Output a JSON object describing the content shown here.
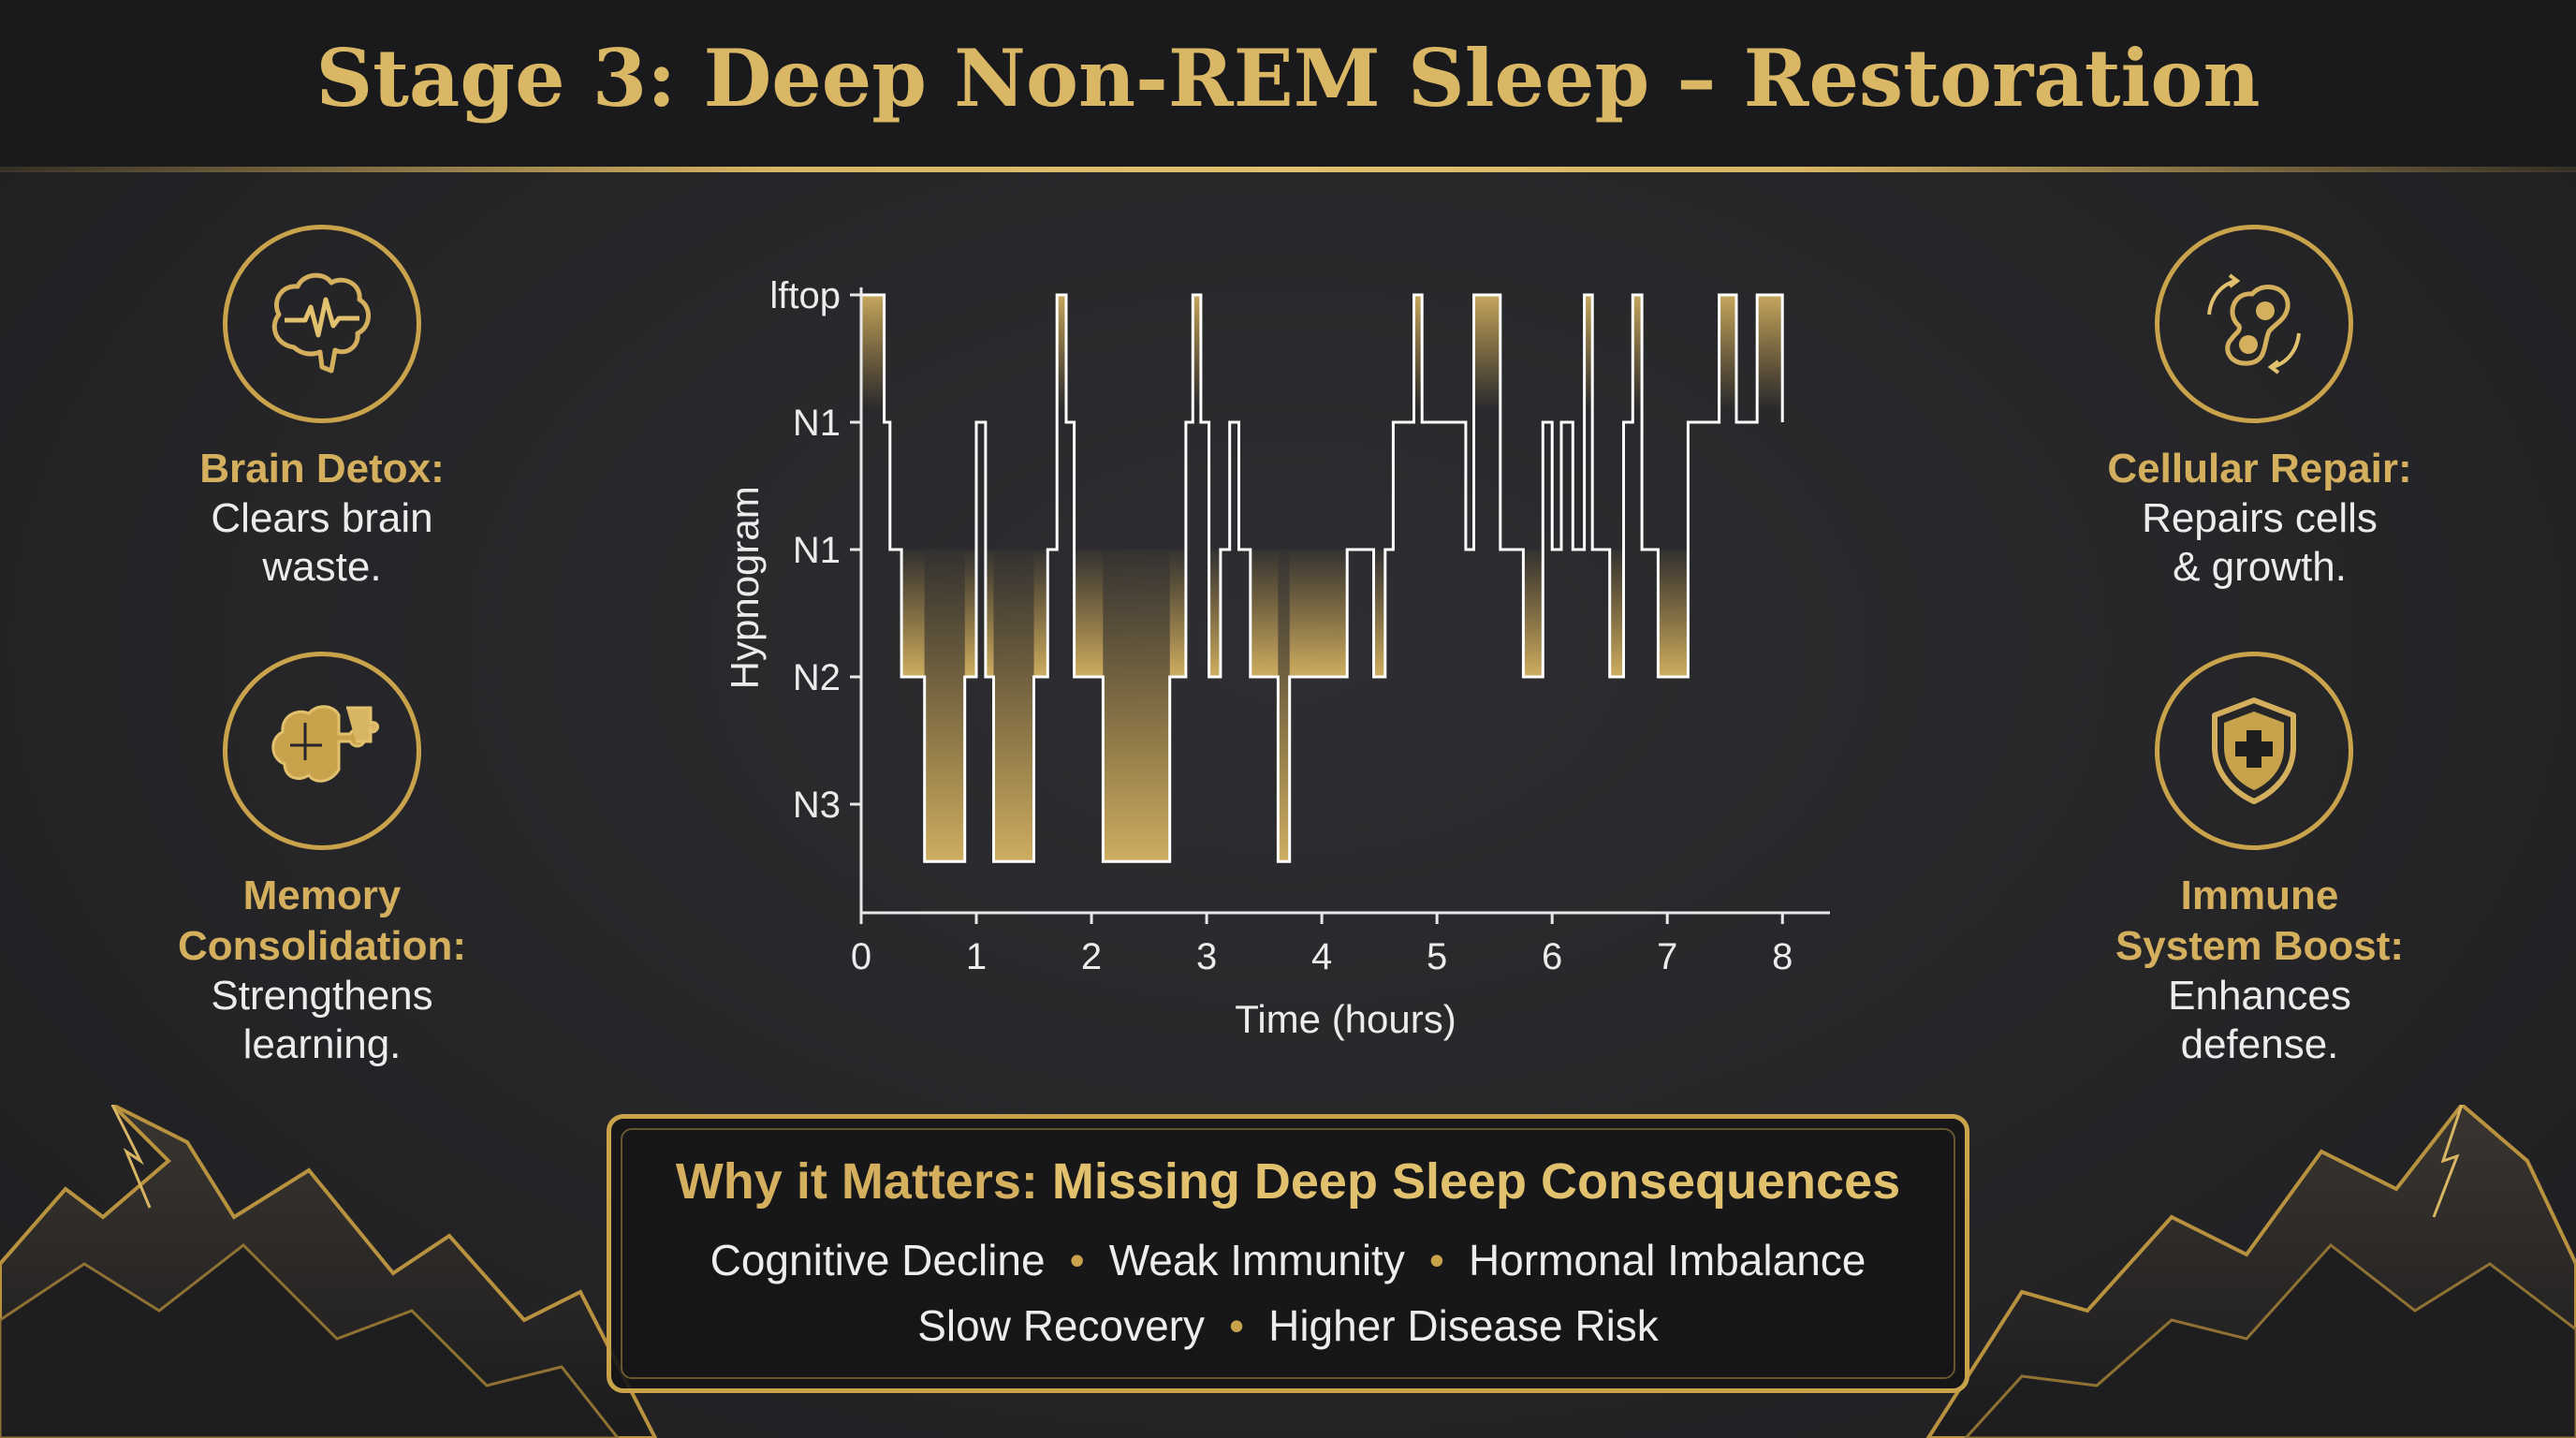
{
  "title": "Stage 3: Deep Non-REM Sleep – Restoration",
  "features": {
    "brain_detox": {
      "title": "Brain Detox:",
      "desc": [
        "Clears brain",
        "waste."
      ],
      "icon": "brain-pulse-icon"
    },
    "memory": {
      "title": [
        "Memory",
        "Consolidation:"
      ],
      "desc": [
        "Strengthens",
        "learning."
      ],
      "icon": "brain-puzzle-icon"
    },
    "cellular": {
      "title": "Cellular Repair:",
      "desc": [
        "Repairs cells",
        "& growth."
      ],
      "icon": "cell-division-icon"
    },
    "immune": {
      "title": [
        "Immune",
        "System Boost:"
      ],
      "desc": [
        "Enhances",
        "defense."
      ],
      "icon": "shield-plus-icon"
    }
  },
  "panel": {
    "title_a": "Why it Matters: ",
    "title_b": "Missing Deep Sleep Consequences",
    "row1": [
      "Cognitive Decline",
      "Weak Immunity",
      "Hormonal Imbalance"
    ],
    "row2": [
      "Slow Recovery",
      "Higher Disease Risk"
    ],
    "separator": "•"
  },
  "colors": {
    "gold": "#c9a24c",
    "gold_light": "#e2c16e",
    "background": "#26262a",
    "text": "#ececec"
  },
  "chart_data": {
    "type": "line",
    "ylabel": "Hypnogram",
    "xlabel": "Time (hours)",
    "x_ticks": [
      0,
      1,
      2,
      3,
      4,
      5,
      6,
      7,
      8
    ],
    "xlim": [
      0,
      8.25
    ],
    "y_tick_labels": [
      "lftop",
      "N1",
      "N1",
      "N2",
      "N3"
    ],
    "y_levels": [
      0,
      1,
      2,
      3,
      4
    ],
    "line_color": "#ffffff",
    "fill_color": "#c9a24c",
    "points": [
      [
        0.0,
        0
      ],
      [
        0.2,
        0
      ],
      [
        0.2,
        1
      ],
      [
        0.25,
        1
      ],
      [
        0.25,
        2
      ],
      [
        0.35,
        2
      ],
      [
        0.35,
        3
      ],
      [
        0.55,
        3
      ],
      [
        0.55,
        4.45
      ],
      [
        0.9,
        4.45
      ],
      [
        0.9,
        3
      ],
      [
        1.0,
        3
      ],
      [
        1.0,
        1
      ],
      [
        1.08,
        1
      ],
      [
        1.08,
        3
      ],
      [
        1.15,
        3
      ],
      [
        1.15,
        4.45
      ],
      [
        1.5,
        4.45
      ],
      [
        1.5,
        3
      ],
      [
        1.62,
        3
      ],
      [
        1.62,
        2
      ],
      [
        1.7,
        2
      ],
      [
        1.7,
        0
      ],
      [
        1.78,
        0
      ],
      [
        1.78,
        1
      ],
      [
        1.85,
        1
      ],
      [
        1.85,
        3
      ],
      [
        2.1,
        3
      ],
      [
        2.1,
        4.45
      ],
      [
        2.68,
        4.45
      ],
      [
        2.68,
        3
      ],
      [
        2.82,
        3
      ],
      [
        2.82,
        1
      ],
      [
        2.88,
        1
      ],
      [
        2.88,
        0
      ],
      [
        2.95,
        0
      ],
      [
        2.95,
        1
      ],
      [
        3.02,
        1
      ],
      [
        3.02,
        3
      ],
      [
        3.12,
        3
      ],
      [
        3.12,
        2
      ],
      [
        3.2,
        2
      ],
      [
        3.2,
        1
      ],
      [
        3.28,
        1
      ],
      [
        3.28,
        2
      ],
      [
        3.38,
        2
      ],
      [
        3.38,
        3
      ],
      [
        3.62,
        3
      ],
      [
        3.62,
        4.45
      ],
      [
        3.72,
        4.45
      ],
      [
        3.72,
        3
      ],
      [
        4.22,
        3
      ],
      [
        4.22,
        2
      ],
      [
        4.45,
        2
      ],
      [
        4.45,
        3
      ],
      [
        4.55,
        3
      ],
      [
        4.55,
        2
      ],
      [
        4.62,
        2
      ],
      [
        4.62,
        1
      ],
      [
        4.8,
        1
      ],
      [
        4.8,
        0
      ],
      [
        4.87,
        0
      ],
      [
        4.87,
        1
      ],
      [
        5.0,
        1
      ],
      [
        5.0,
        1
      ],
      [
        5.25,
        1
      ],
      [
        5.25,
        2
      ],
      [
        5.32,
        2
      ],
      [
        5.32,
        0
      ],
      [
        5.55,
        0
      ],
      [
        5.55,
        2
      ],
      [
        5.75,
        2
      ],
      [
        5.75,
        3
      ],
      [
        5.92,
        3
      ],
      [
        5.92,
        1
      ],
      [
        6.0,
        1
      ],
      [
        6.0,
        2
      ],
      [
        6.08,
        2
      ],
      [
        6.08,
        1
      ],
      [
        6.18,
        1
      ],
      [
        6.18,
        2
      ],
      [
        6.28,
        2
      ],
      [
        6.28,
        0
      ],
      [
        6.35,
        0
      ],
      [
        6.35,
        2
      ],
      [
        6.5,
        2
      ],
      [
        6.5,
        3
      ],
      [
        6.62,
        3
      ],
      [
        6.62,
        1
      ],
      [
        6.7,
        1
      ],
      [
        6.7,
        0
      ],
      [
        6.78,
        0
      ],
      [
        6.78,
        2
      ],
      [
        6.92,
        2
      ],
      [
        6.92,
        3
      ],
      [
        7.18,
        3
      ],
      [
        7.18,
        1
      ],
      [
        7.45,
        1
      ],
      [
        7.45,
        0
      ],
      [
        7.6,
        0
      ],
      [
        7.6,
        1
      ],
      [
        7.78,
        1
      ],
      [
        7.78,
        0
      ],
      [
        8.0,
        0
      ],
      [
        8.0,
        1
      ]
    ]
  }
}
